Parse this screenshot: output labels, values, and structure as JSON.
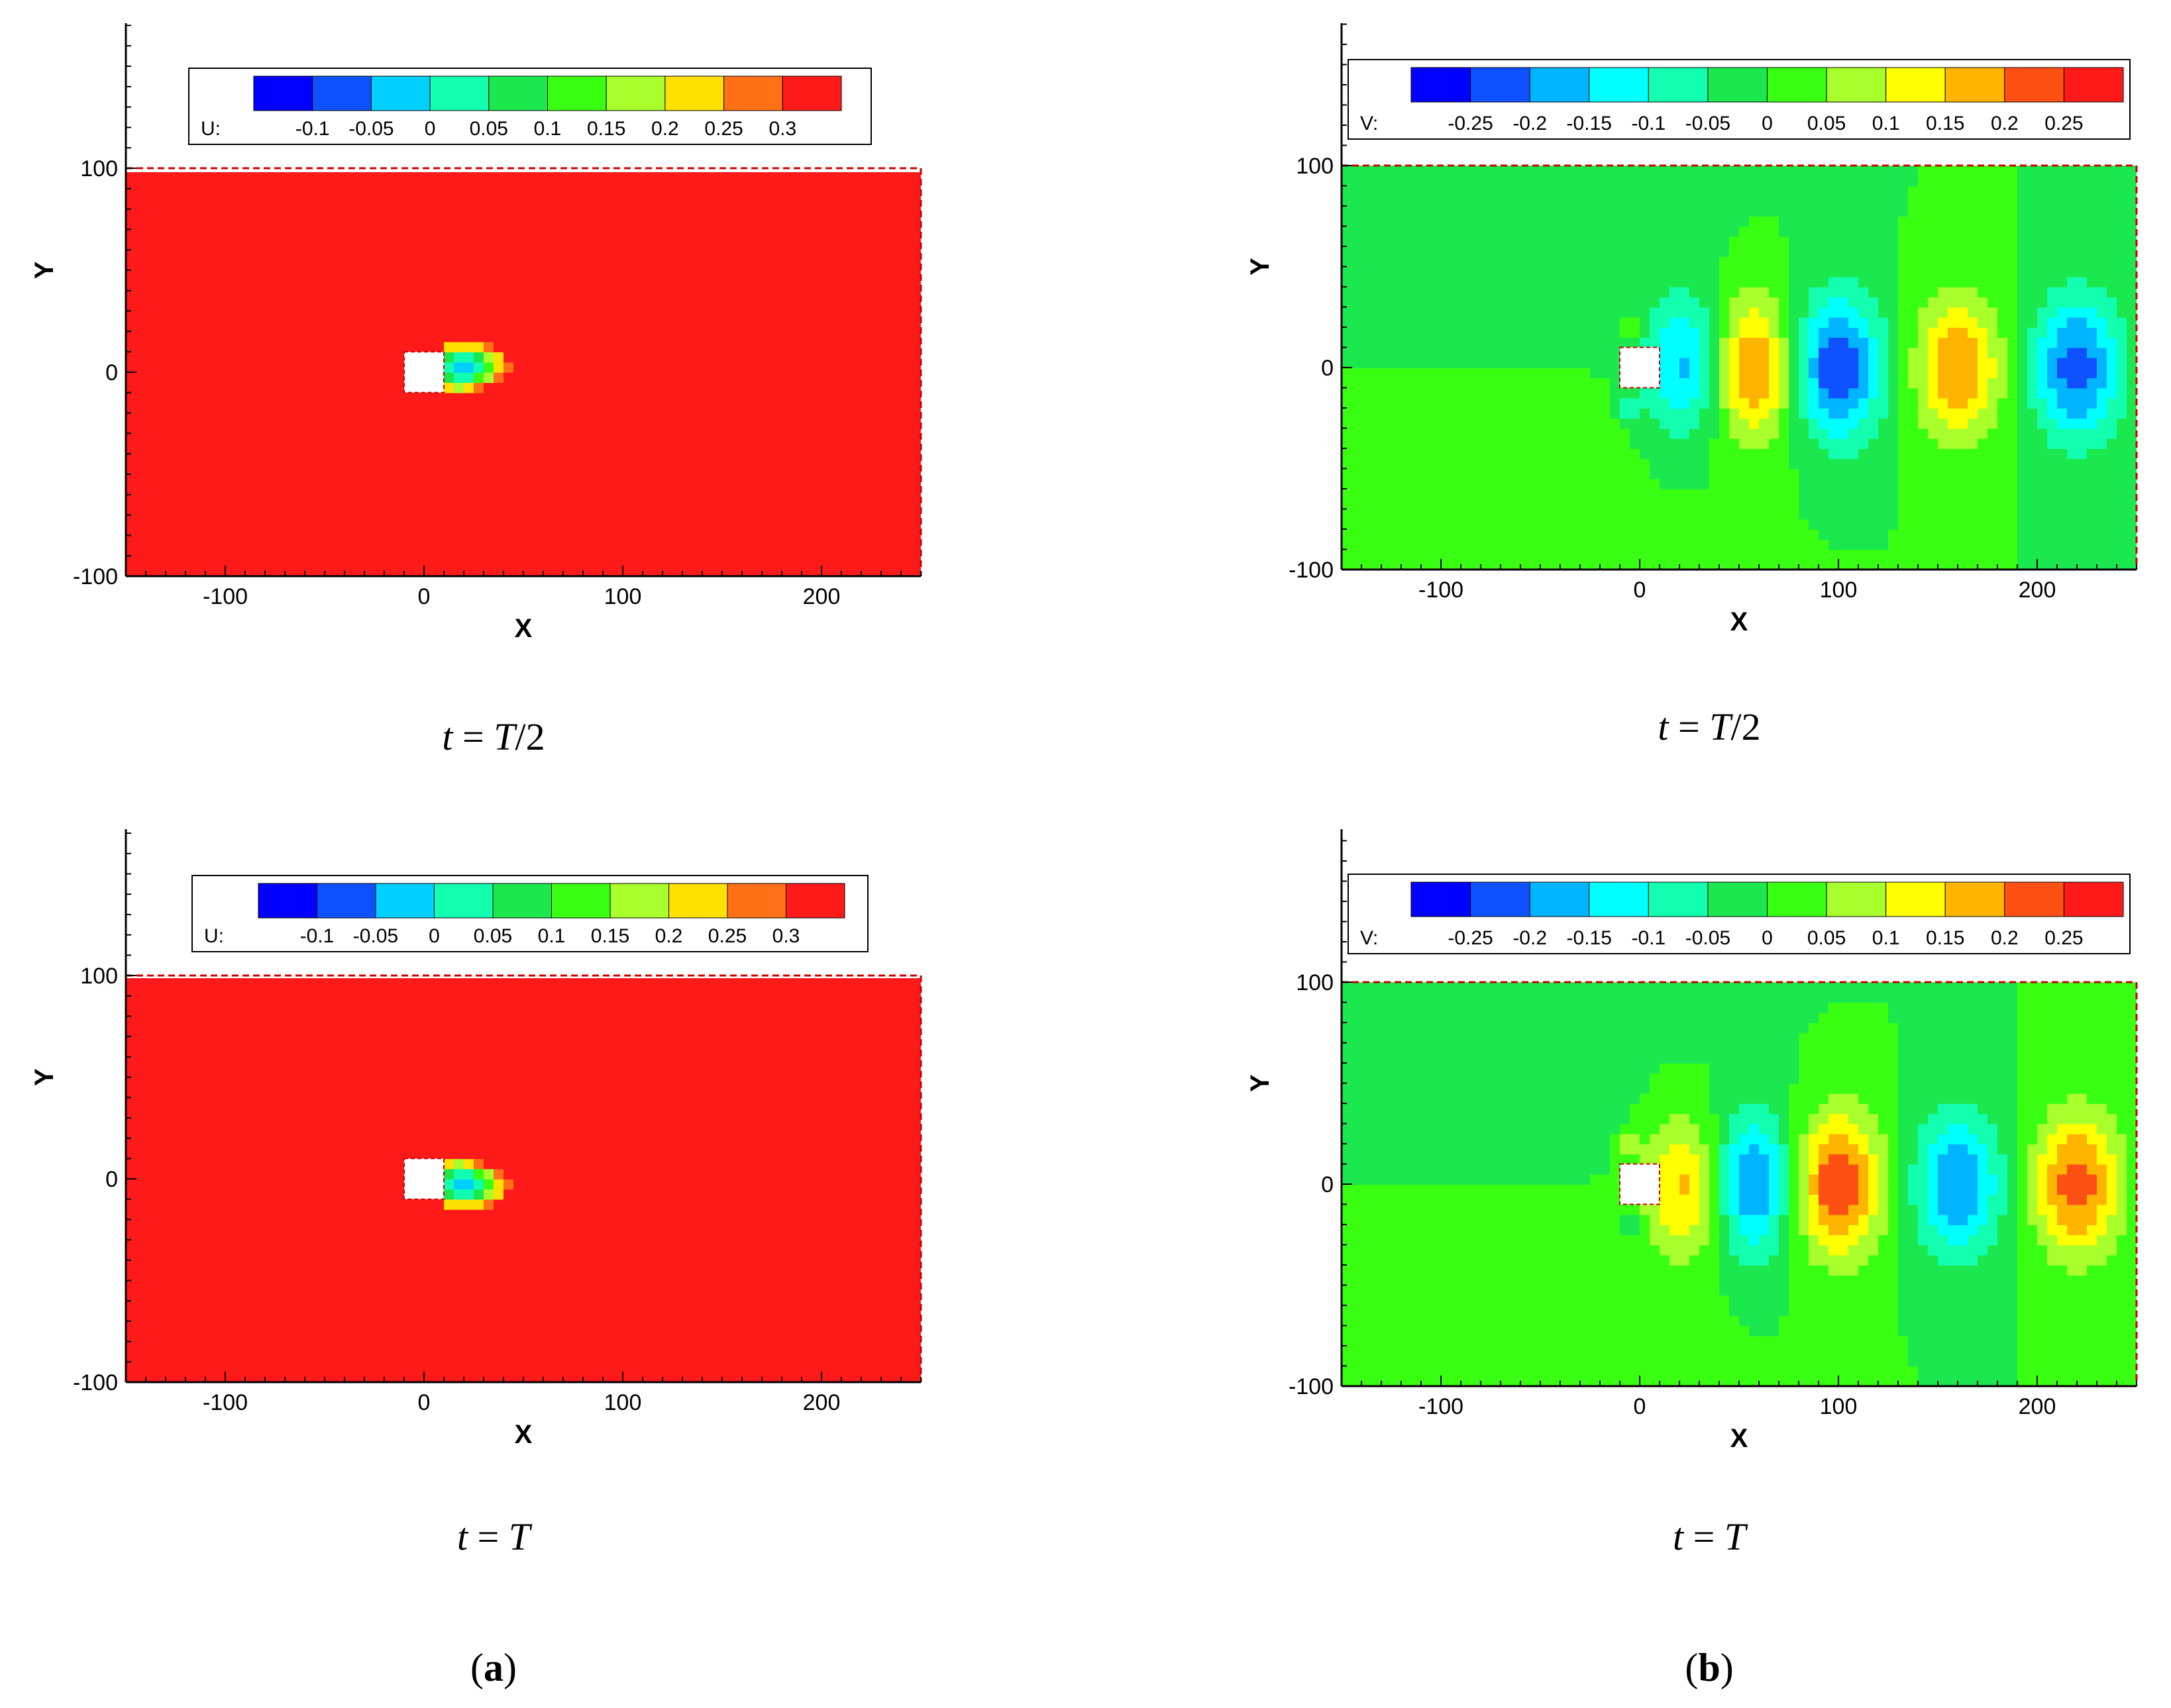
{
  "chart_data": [
    {
      "type": "heatmap",
      "field": "U",
      "legend_label": "U:",
      "legend_ticks": [
        "-0.1",
        "-0.05",
        "0",
        "0.05",
        "0.1",
        "0.15",
        "0.2",
        "0.25",
        "0.3"
      ],
      "levels": [
        -0.125,
        -0.1,
        -0.075,
        -0.05,
        -0.025,
        0,
        0.025,
        0.05,
        0.075,
        0.1,
        0.125,
        0.15,
        0.175,
        0.2,
        0.225,
        0.25,
        0.275,
        0.3,
        0.325
      ],
      "colors": [
        "#0000ff",
        "#0e52ff",
        "#00d0ff",
        "#12ffb0",
        "#1be84f",
        "#39ff13",
        "#a9ff2c",
        "#ffe000",
        "#ff7016",
        "#ff1a1a"
      ],
      "background_value": 0.225,
      "xlabel": "X",
      "ylabel": "Y",
      "xticks": [
        "-100",
        "0",
        "100",
        "200"
      ],
      "yticks": [
        "-100",
        "0",
        "100"
      ],
      "xlim": [
        -150,
        250
      ],
      "ylim": [
        -100,
        175
      ],
      "grid": false,
      "legend_placement": "top",
      "caption": {
        "t": "t",
        "eq": " = ",
        "val": "T",
        "frac": "/2"
      }
    },
    {
      "type": "heatmap",
      "field": "V",
      "legend_label": "V:",
      "legend_ticks": [
        "-0.25",
        "-0.2",
        "-0.15",
        "-0.1",
        "-0.05",
        "0",
        "0.05",
        "0.1",
        "0.15",
        "0.2",
        "0.25"
      ],
      "levels": [
        -0.275,
        -0.25,
        -0.2,
        -0.15,
        -0.1,
        -0.05,
        0,
        0.05,
        0.1,
        0.15,
        0.2,
        0.25,
        0.275
      ],
      "colors": [
        "#0000ff",
        "#0e52ff",
        "#00b4ff",
        "#00ffff",
        "#12ffb0",
        "#1be84f",
        "#39ff13",
        "#a9ff2c",
        "#ffff00",
        "#ffb400",
        "#ff5014",
        "#ff1a1a"
      ],
      "background_value": 0.0,
      "xlabel": "X",
      "ylabel": "Y",
      "xticks": [
        "-100",
        "0",
        "100",
        "200"
      ],
      "yticks": [
        "-100",
        "0",
        "100"
      ],
      "xlim": [
        -150,
        250
      ],
      "ylim": [
        -100,
        175
      ],
      "grid": false,
      "legend_placement": "top",
      "caption": {
        "t": "t",
        "eq": " = ",
        "val": "T",
        "frac": "/2"
      }
    },
    {
      "type": "heatmap",
      "field": "U",
      "legend_label": "U:",
      "legend_ticks": [
        "-0.1",
        "-0.05",
        "0",
        "0.05",
        "0.1",
        "0.15",
        "0.2",
        "0.25",
        "0.3"
      ],
      "levels": [
        -0.125,
        -0.1,
        -0.075,
        -0.05,
        -0.025,
        0,
        0.025,
        0.05,
        0.075,
        0.1,
        0.125,
        0.15,
        0.175,
        0.2,
        0.225,
        0.25,
        0.275,
        0.3,
        0.325
      ],
      "colors": [
        "#0000ff",
        "#0e52ff",
        "#00d0ff",
        "#12ffb0",
        "#1be84f",
        "#39ff13",
        "#a9ff2c",
        "#ffe000",
        "#ff7016",
        "#ff1a1a"
      ],
      "background_value": 0.225,
      "xlabel": "X",
      "ylabel": "Y",
      "xticks": [
        "-100",
        "0",
        "100",
        "200"
      ],
      "yticks": [
        "-100",
        "0",
        "100"
      ],
      "xlim": [
        -150,
        250
      ],
      "ylim": [
        -100,
        175
      ],
      "grid": false,
      "legend_placement": "top",
      "caption": {
        "t": "t",
        "eq": " = ",
        "val": "T",
        "frac": ""
      }
    },
    {
      "type": "heatmap",
      "field": "V",
      "legend_label": "V:",
      "legend_ticks": [
        "-0.25",
        "-0.2",
        "-0.15",
        "-0.1",
        "-0.05",
        "0",
        "0.05",
        "0.1",
        "0.15",
        "0.2",
        "0.25"
      ],
      "levels": [
        -0.275,
        -0.25,
        -0.2,
        -0.15,
        -0.1,
        -0.05,
        0,
        0.05,
        0.1,
        0.15,
        0.2,
        0.25,
        0.275
      ],
      "colors": [
        "#0000ff",
        "#0e52ff",
        "#00b4ff",
        "#00ffff",
        "#12ffb0",
        "#1be84f",
        "#39ff13",
        "#a9ff2c",
        "#ffff00",
        "#ffb400",
        "#ff5014",
        "#ff1a1a"
      ],
      "background_value": 0.0,
      "xlabel": "X",
      "ylabel": "Y",
      "xticks": [
        "-100",
        "0",
        "100",
        "200"
      ],
      "yticks": [
        "-100",
        "0",
        "100"
      ],
      "xlim": [
        -150,
        250
      ],
      "ylim": [
        -100,
        175
      ],
      "grid": false,
      "legend_placement": "top",
      "caption": {
        "t": "t",
        "eq": " = ",
        "val": "T",
        "frac": ""
      }
    }
  ],
  "panel_labels": {
    "a": {
      "open": "(",
      "letter": "a",
      "close": ")"
    },
    "b": {
      "open": "(",
      "letter": "b",
      "close": ")"
    }
  }
}
